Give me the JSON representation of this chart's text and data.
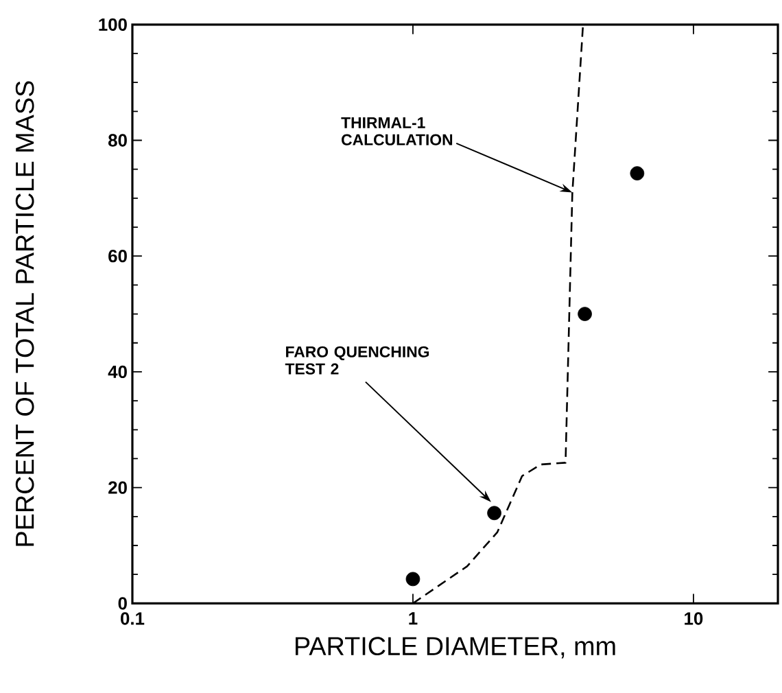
{
  "chart_data": {
    "type": "scatter",
    "xlabel": "PARTICLE DIAMETER, mm",
    "ylabel": "PERCENT OF TOTAL PARTICLE MASS",
    "log": "x",
    "xlim": [
      0.1,
      20
    ],
    "xticks": [
      0.1,
      1,
      10
    ],
    "ylim": [
      0,
      100
    ],
    "yticks": [
      0,
      20,
      40,
      60,
      80,
      100
    ],
    "series": [
      {
        "marker": "circle",
        "color": "#000000",
        "x": [
          1.0,
          1.95,
          4.1,
          6.3
        ],
        "values": [
          4.2,
          15.6,
          50,
          74.3
        ]
      },
      {
        "type": "line",
        "line_style": "dashed",
        "marker": "none",
        "color": "#000000",
        "x": [
          1.0,
          1.56,
          2.0,
          2.45,
          2.86,
          3.5,
          3.7,
          4.04
        ],
        "values": [
          0,
          6.4,
          12.3,
          22,
          24,
          24.3,
          70.8,
          100
        ]
      }
    ],
    "annotations": [
      {
        "text": "THIRMAL-1 CALCULATION",
        "x": 3.7,
        "y": 71
      },
      {
        "text": "FARO QUENCHING TEST 2",
        "x": 1.9,
        "y": 17.5
      }
    ]
  }
}
